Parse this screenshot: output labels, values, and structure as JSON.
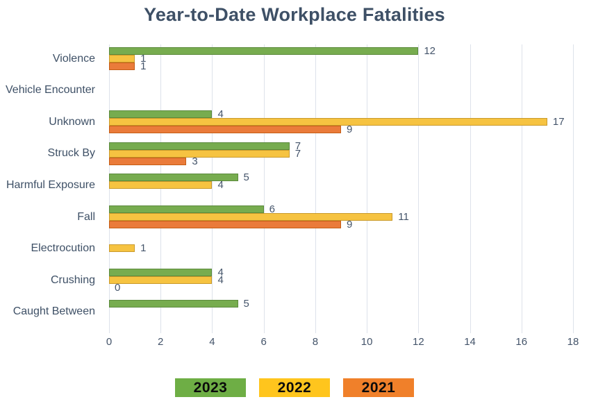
{
  "title": "Year-to-Date Workplace Fatalities",
  "chart_data": {
    "type": "bar",
    "orientation": "horizontal",
    "title": "Year-to-Date Workplace Fatalities",
    "categories": [
      "Violence",
      "Vehicle Encounter",
      "Unknown",
      "Struck By",
      "Harmful Exposure",
      "Fall",
      "Electrocution",
      "Crushing",
      "Caught Between"
    ],
    "series": [
      {
        "name": "2023",
        "color": "#77AC4F",
        "border_color": "#5B8A3C",
        "values": [
          12,
          null,
          4,
          7,
          5,
          6,
          null,
          4,
          5
        ]
      },
      {
        "name": "2022",
        "color": "#F6C341",
        "border_color": "#C99A2C",
        "values": [
          1,
          null,
          17,
          7,
          4,
          11,
          1,
          4,
          null
        ]
      },
      {
        "name": "2021",
        "color": "#EA7B3A",
        "border_color": "#C45D15",
        "values": [
          1,
          null,
          9,
          3,
          null,
          9,
          null,
          0,
          null
        ]
      }
    ],
    "xlim": [
      0,
      18
    ],
    "x_ticks": [
      0,
      2,
      4,
      6,
      8,
      10,
      12,
      14,
      16,
      18
    ],
    "grid": "vertical-only",
    "legend_position": "bottom",
    "data_labels": true
  },
  "legend": {
    "items": [
      {
        "label": "2023",
        "color": "#6EAE45"
      },
      {
        "label": "2022",
        "color": "#FFC51D"
      },
      {
        "label": "2021",
        "color": "#F0802A"
      }
    ]
  },
  "colors": {
    "title_text": "#3E5066",
    "axis_text": "#44546A",
    "gridline": "#DDE2EA",
    "background": "#FFFFFF"
  }
}
